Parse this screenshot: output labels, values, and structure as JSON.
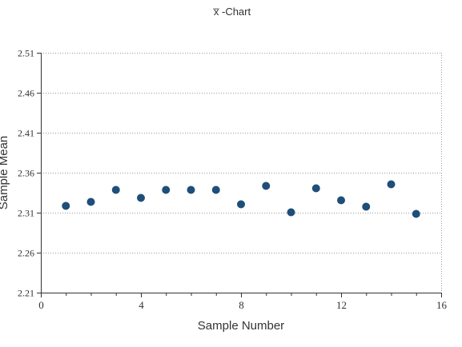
{
  "chart_data": {
    "type": "scatter",
    "title": "x̅ -Chart",
    "xlabel": "Sample Number",
    "ylabel": "Sample Mean",
    "xlim": [
      0,
      16
    ],
    "ylim": [
      2.21,
      2.51
    ],
    "xticks": [
      0,
      4,
      8,
      12,
      16
    ],
    "yticks": [
      2.21,
      2.26,
      2.31,
      2.36,
      2.41,
      2.46,
      2.51
    ],
    "grid": true,
    "marker_color": "#1f4e79",
    "points": [
      {
        "x": 1,
        "y": 2.3185
      },
      {
        "x": 2,
        "y": 2.3235
      },
      {
        "x": 3,
        "y": 2.3385
      },
      {
        "x": 4,
        "y": 2.3285
      },
      {
        "x": 5,
        "y": 2.3385
      },
      {
        "x": 6,
        "y": 2.3385
      },
      {
        "x": 7,
        "y": 2.3385
      },
      {
        "x": 8,
        "y": 2.3205
      },
      {
        "x": 9,
        "y": 2.3435
      },
      {
        "x": 10,
        "y": 2.3105
      },
      {
        "x": 11,
        "y": 2.3405
      },
      {
        "x": 12,
        "y": 2.3255
      },
      {
        "x": 13,
        "y": 2.3175
      },
      {
        "x": 14,
        "y": 2.3455
      },
      {
        "x": 15,
        "y": 2.3085
      }
    ]
  }
}
